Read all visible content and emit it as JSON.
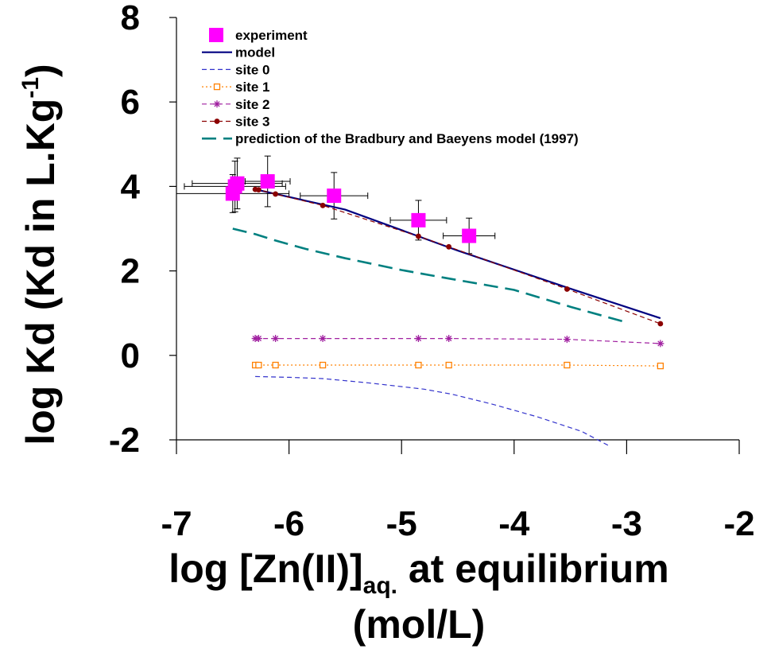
{
  "chart_data": {
    "type": "scatter",
    "xlabel": {
      "main": "log [Zn(II)]",
      "sub": "aq.",
      "tail": " at equilibrium",
      "line2": "(mol/L)"
    },
    "ylabel": {
      "main": "log Kd (Kd in L.Kg",
      "sup": "-1",
      "tail": ")"
    },
    "xlim": [
      -7,
      -2
    ],
    "ylim": [
      -2,
      8
    ],
    "xticks": [
      -7,
      -6,
      -5,
      -4,
      -3,
      -2
    ],
    "yticks": [
      -2,
      0,
      2,
      4,
      6,
      8
    ],
    "x_tick_labels": [
      "-7",
      "-6",
      "-5",
      "-4",
      "-3",
      "-2"
    ],
    "y_tick_labels": [
      "-2",
      "0",
      "2",
      "4",
      "6",
      "8"
    ],
    "grid": false,
    "legend_position": "top-left",
    "series": [
      {
        "name": "experiment",
        "kind": "scatter",
        "color": "#ff00ff",
        "marker": "square",
        "points": [
          {
            "x": -6.5,
            "y": 3.83,
            "xerr": 0.5,
            "yerr": 0.45
          },
          {
            "x": -6.48,
            "y": 4.0,
            "xerr": 0.45,
            "yerr": 0.6
          },
          {
            "x": -6.46,
            "y": 4.07,
            "xerr": 0.4,
            "yerr": 0.6
          },
          {
            "x": -6.19,
            "y": 4.12,
            "xerr": 0.2,
            "yerr": 0.6
          },
          {
            "x": -5.6,
            "y": 3.78,
            "xerr": 0.3,
            "yerr": 0.55
          },
          {
            "x": -4.85,
            "y": 3.2,
            "xerr": 0.25,
            "yerr": 0.47
          },
          {
            "x": -4.4,
            "y": 2.83,
            "xerr": 0.23,
            "yerr": 0.42
          }
        ]
      },
      {
        "name": "model",
        "kind": "line",
        "color": "#000080",
        "dash": "",
        "points": [
          [
            -6.3,
            3.93
          ],
          [
            -5.5,
            3.45
          ],
          [
            -4.5,
            2.48
          ],
          [
            -3.5,
            1.58
          ],
          [
            -2.7,
            0.88
          ]
        ]
      },
      {
        "name": "site 0",
        "kind": "line",
        "color": "#3333cc",
        "dash": "6,4",
        "points": [
          [
            -6.3,
            -0.5
          ],
          [
            -6.0,
            -0.52
          ],
          [
            -5.7,
            -0.55
          ],
          [
            -5.3,
            -0.65
          ],
          [
            -4.8,
            -0.8
          ],
          [
            -4.55,
            -0.92
          ],
          [
            -4.2,
            -1.15
          ],
          [
            -3.8,
            -1.45
          ],
          [
            -3.4,
            -1.8
          ],
          [
            -3.15,
            -2.15
          ]
        ]
      },
      {
        "name": "site 1",
        "kind": "line",
        "color": "#ff8000",
        "dash": "2,3",
        "marker": "open-square",
        "points": [
          [
            -6.3,
            -0.23
          ],
          [
            -6.27,
            -0.23
          ],
          [
            -6.12,
            -0.23
          ],
          [
            -5.7,
            -0.23
          ],
          [
            -4.85,
            -0.23
          ],
          [
            -4.58,
            -0.23
          ],
          [
            -3.53,
            -0.23
          ],
          [
            -2.7,
            -0.25
          ]
        ]
      },
      {
        "name": "site 2",
        "kind": "line",
        "color": "#a020a0",
        "dash": "6,4",
        "marker": "star",
        "points": [
          [
            -6.3,
            0.4
          ],
          [
            -6.27,
            0.4
          ],
          [
            -6.12,
            0.4
          ],
          [
            -5.7,
            0.4
          ],
          [
            -4.85,
            0.4
          ],
          [
            -4.58,
            0.4
          ],
          [
            -3.53,
            0.38
          ],
          [
            -2.7,
            0.28
          ]
        ]
      },
      {
        "name": "site 3",
        "kind": "line",
        "color": "#8b0000",
        "dash": "6,4",
        "marker": "dot",
        "points": [
          [
            -6.3,
            3.93
          ],
          [
            -6.27,
            3.92
          ],
          [
            -6.12,
            3.82
          ],
          [
            -5.7,
            3.55
          ],
          [
            -4.85,
            2.82
          ],
          [
            -4.58,
            2.57
          ],
          [
            -3.53,
            1.57
          ],
          [
            -2.7,
            0.75
          ]
        ]
      },
      {
        "name": "prediction of the Bradbury and Baeyens model (1997)",
        "kind": "line",
        "color": "#008080",
        "dash": "18,9",
        "points": [
          [
            -6.5,
            3.0
          ],
          [
            -6.3,
            2.87
          ],
          [
            -6.12,
            2.72
          ],
          [
            -5.85,
            2.52
          ],
          [
            -5.5,
            2.3
          ],
          [
            -5.0,
            2.02
          ],
          [
            -4.58,
            1.82
          ],
          [
            -4.0,
            1.55
          ],
          [
            -3.5,
            1.15
          ],
          [
            -3.0,
            0.78
          ]
        ]
      }
    ]
  }
}
